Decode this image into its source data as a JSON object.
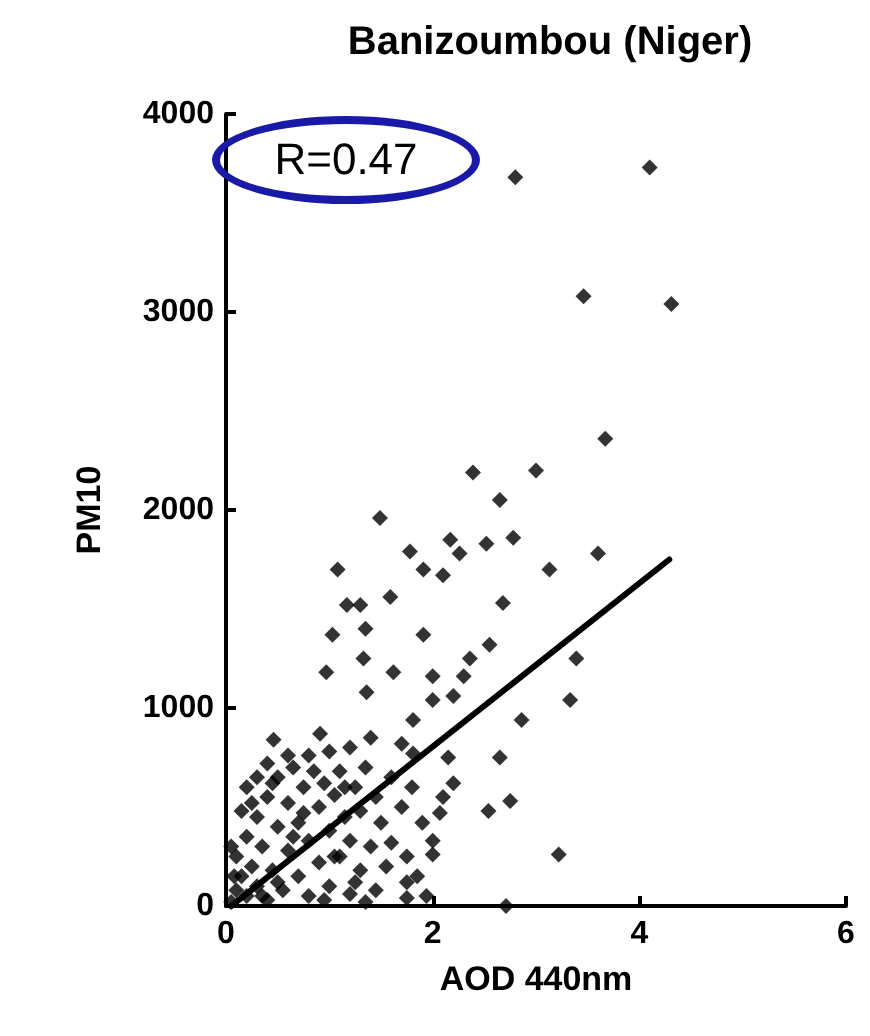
{
  "chart_data": {
    "type": "scatter",
    "title": "Banizoumbou (Niger)",
    "xlabel": "AOD 440nm",
    "ylabel": "PM10",
    "annotations": [
      "R=0.47"
    ],
    "xlim": [
      0,
      6
    ],
    "xticks": [
      0,
      2,
      4,
      6
    ],
    "ylim": [
      0,
      4000
    ],
    "yticks": [
      0,
      1000,
      2000,
      3000,
      4000
    ],
    "grid": false,
    "marker": "diamond",
    "series": [
      {
        "color": "#000000",
        "x": [
          2.8,
          4.1,
          3.46,
          4.31,
          3.67,
          2.39,
          3.0,
          2.65,
          1.49,
          1.08,
          1.78,
          2.17,
          2.26,
          2.52,
          2.78,
          1.91,
          2.1,
          3.13,
          3.6,
          2.68,
          3.39,
          3.33,
          2.86,
          2.65,
          2.54,
          2.75,
          3.22,
          2.71,
          2.0,
          2.0,
          2.55,
          2.36,
          0.46,
          1.17,
          1.3,
          1.59,
          1.35,
          1.03,
          1.91,
          1.62,
          0.97,
          1.33,
          2.0,
          1.81,
          2.2,
          2.3,
          1.81,
          2.07,
          1.75,
          1.94,
          0.91,
          1.36,
          0.05,
          0.1,
          0.1,
          0.15,
          0.2,
          0.2,
          0.25,
          0.3,
          0.3,
          0.35,
          0.4,
          0.4,
          0.45,
          0.5,
          0.5,
          0.55,
          0.6,
          0.6,
          0.65,
          0.7,
          0.7,
          0.75,
          0.8,
          0.8,
          0.85,
          0.9,
          0.9,
          0.95,
          1.0,
          1.0,
          1.05,
          1.1,
          1.1,
          1.15,
          1.2,
          1.2,
          1.25,
          1.3,
          1.3,
          1.35,
          1.4,
          1.45,
          1.45,
          1.5,
          1.55,
          1.6,
          1.6,
          1.7,
          1.75,
          1.8,
          1.85,
          1.9,
          2.0,
          2.1,
          2.2,
          2.15,
          1.7,
          1.4,
          1.2,
          1.0,
          0.8,
          0.6,
          0.4,
          0.3,
          0.2,
          0.15,
          0.05,
          0.08,
          0.5,
          0.95,
          1.35,
          1.75,
          0.65,
          1.05,
          0.35,
          1.25,
          0.75,
          1.15,
          0.45,
          0.25
        ],
        "values": [
          3680,
          3730,
          3080,
          3040,
          2360,
          2190,
          2200,
          2050,
          1960,
          1700,
          1790,
          1850,
          1780,
          1830,
          1860,
          1700,
          1670,
          1700,
          1780,
          1530,
          1250,
          1040,
          940,
          750,
          480,
          530,
          260,
          0,
          260,
          1160,
          1320,
          1250,
          840,
          1520,
          1520,
          1560,
          1400,
          1370,
          1370,
          1180,
          1180,
          1250,
          1040,
          940,
          1060,
          1160,
          770,
          470,
          120,
          50,
          870,
          1080,
          20,
          80,
          250,
          150,
          50,
          350,
          200,
          100,
          450,
          300,
          30,
          550,
          180,
          400,
          650,
          80,
          280,
          520,
          700,
          150,
          420,
          600,
          50,
          330,
          680,
          220,
          500,
          620,
          100,
          380,
          560,
          250,
          680,
          450,
          60,
          330,
          600,
          180,
          480,
          700,
          300,
          80,
          550,
          420,
          200,
          650,
          320,
          500,
          250,
          600,
          150,
          420,
          330,
          550,
          620,
          750,
          820,
          850,
          800,
          780,
          760,
          760,
          720,
          650,
          600,
          480,
          300,
          150,
          120,
          30,
          20,
          40,
          350,
          250,
          50,
          120,
          470,
          600,
          620,
          520
        ]
      },
      {
        "type": "line",
        "color": "#000000",
        "marker": "none",
        "line_style": "solid",
        "x": [
          0.05,
          4.29
        ],
        "values": [
          0,
          1750
        ]
      }
    ]
  }
}
